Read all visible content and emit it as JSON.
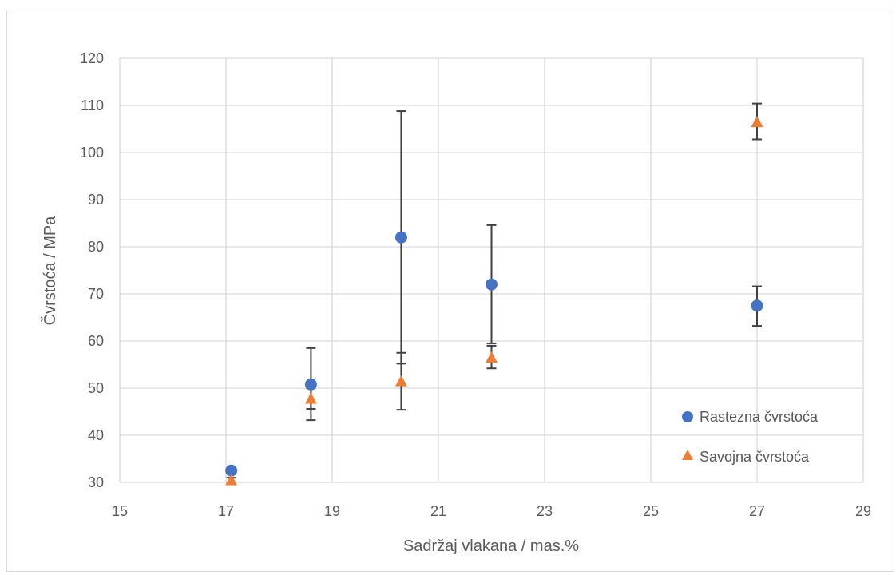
{
  "chart_data": {
    "type": "scatter",
    "title": "",
    "xlabel": "Sadržaj vlakana / mas.%",
    "ylabel": "Čvrstoća / MPa",
    "xlim": [
      15,
      29
    ],
    "ylim": [
      30,
      120
    ],
    "x_ticks": [
      15,
      17,
      19,
      21,
      23,
      25,
      27,
      29
    ],
    "y_ticks": [
      30,
      40,
      50,
      60,
      70,
      80,
      90,
      100,
      110,
      120
    ],
    "grid": true,
    "legend_position": "bottom-right",
    "series": [
      {
        "name": "Rastezna čvrstoća",
        "marker": "circle",
        "color": "#4472C4",
        "points": [
          {
            "x": 17.1,
            "y": 32.5,
            "err_low": 31.8,
            "err_high": 33.0
          },
          {
            "x": 18.6,
            "y": 50.8,
            "err_low": 43.2,
            "err_high": 58.5
          },
          {
            "x": 20.3,
            "y": 82.0,
            "err_low": 55.2,
            "err_high": 108.8
          },
          {
            "x": 22.0,
            "y": 72.0,
            "err_low": 59.5,
            "err_high": 84.6
          },
          {
            "x": 27.0,
            "y": 67.5,
            "err_low": 63.2,
            "err_high": 71.6
          }
        ]
      },
      {
        "name": "Savojna čvrstoća",
        "marker": "triangle",
        "color": "#ED7D31",
        "points": [
          {
            "x": 17.1,
            "y": 30.5,
            "err_low": 30.0,
            "err_high": 31.0
          },
          {
            "x": 18.6,
            "y": 47.8,
            "err_low": 45.6,
            "err_high": 50.0
          },
          {
            "x": 20.3,
            "y": 51.5,
            "err_low": 45.4,
            "err_high": 57.5
          },
          {
            "x": 22.0,
            "y": 56.5,
            "err_low": 54.2,
            "err_high": 59.0
          },
          {
            "x": 27.0,
            "y": 106.5,
            "err_low": 102.8,
            "err_high": 110.4
          }
        ]
      }
    ]
  },
  "legend": {
    "items": [
      {
        "label": "Rastezna čvrstoća",
        "color": "#4472C4"
      },
      {
        "label": "Savojna čvrstoća",
        "color": "#ED7D31"
      }
    ]
  }
}
